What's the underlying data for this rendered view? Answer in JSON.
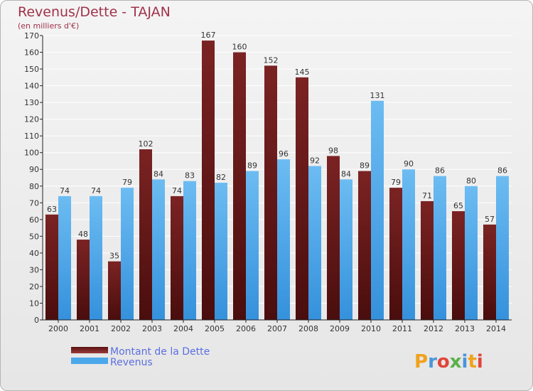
{
  "colors": {
    "dette_top": "#7b2323",
    "dette_bottom": "#4a0d0d",
    "revenus_top": "#6cbcf2",
    "revenus_bottom": "#3591dc",
    "title": "#a0324a",
    "legend_text": "#5b6fe0"
  },
  "logo": {
    "text": "Proxiti"
  },
  "chart_data": {
    "type": "bar",
    "title": "Revenus/Dette - TAJAN",
    "subtitle": "(en milliers d'€)",
    "xlabel": "",
    "ylabel": "",
    "ylim": [
      0,
      170
    ],
    "yticks": [
      0,
      10,
      20,
      30,
      40,
      50,
      60,
      70,
      80,
      90,
      100,
      110,
      120,
      130,
      140,
      150,
      160,
      170
    ],
    "grid": true,
    "legend_position": "bottom-left",
    "categories": [
      "2000",
      "2001",
      "2002",
      "2003",
      "2004",
      "2005",
      "2006",
      "2007",
      "2008",
      "2009",
      "2010",
      "2011",
      "2012",
      "2013",
      "2014"
    ],
    "series": [
      {
        "name": "Montant de la Dette",
        "values": [
          63,
          48,
          35,
          102,
          74,
          167,
          160,
          152,
          145,
          98,
          89,
          79,
          71,
          65,
          57
        ]
      },
      {
        "name": "Revenus",
        "values": [
          74,
          74,
          79,
          84,
          83,
          82,
          89,
          96,
          92,
          84,
          131,
          90,
          86,
          80,
          86
        ]
      }
    ]
  }
}
